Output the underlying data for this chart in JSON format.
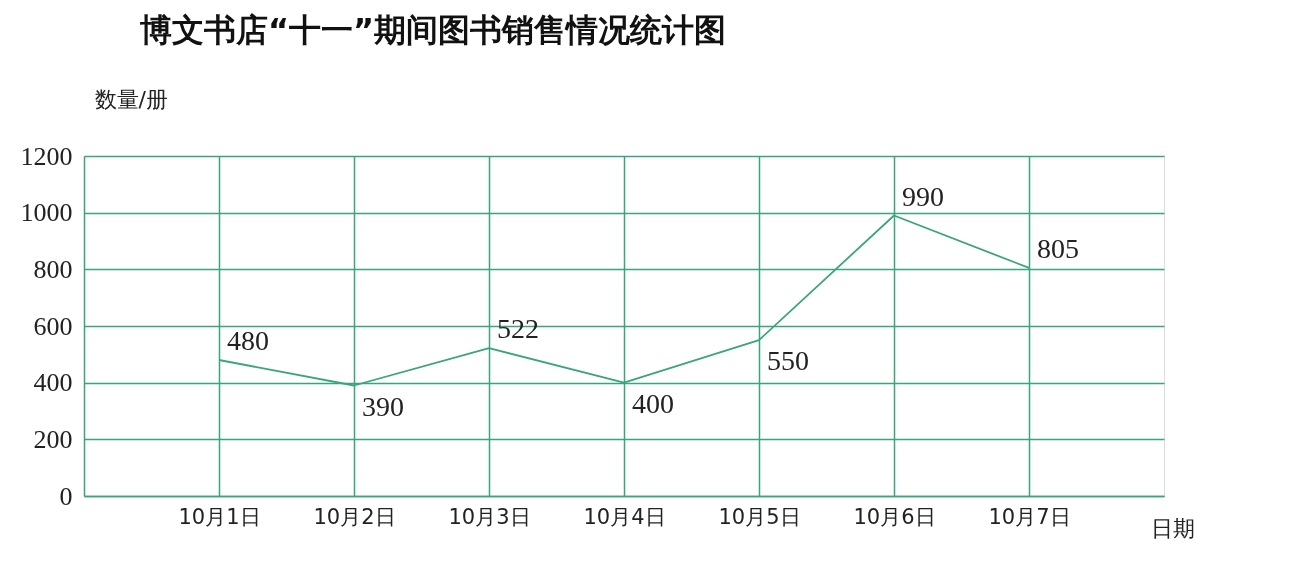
{
  "chart_data": {
    "type": "line",
    "title": "博文书店“十一”期间图书销售情况统计图",
    "xlabel": "日期",
    "ylabel": "数量/册",
    "categories": [
      "10月1日",
      "10月2日",
      "10月3日",
      "10月4日",
      "10月5日",
      "10月6日",
      "10月7日"
    ],
    "values": [
      480,
      390,
      522,
      400,
      550,
      990,
      805
    ],
    "color": "#3aa57a",
    "ylim": [
      0,
      1200
    ],
    "yticks": [
      0,
      200,
      400,
      600,
      800,
      1000,
      1200
    ],
    "grid": true,
    "data_labels": true,
    "line_style": "solid"
  }
}
